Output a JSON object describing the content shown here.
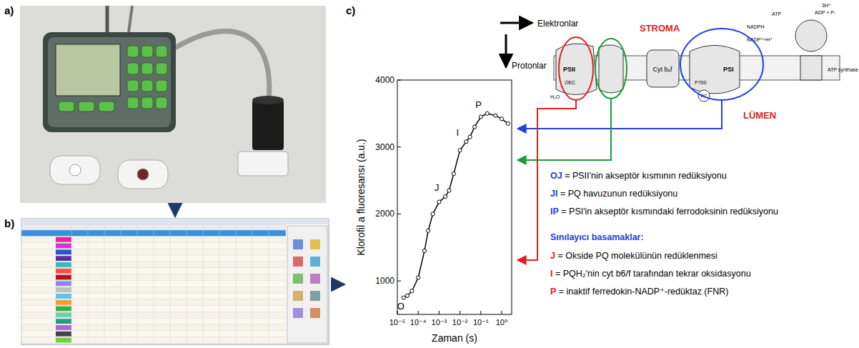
{
  "panels": {
    "a": "a)",
    "b": "b)",
    "c": "c)"
  },
  "chart_data": {
    "type": "line",
    "y_label": "Klorofil a fluoresansı (a.u.)",
    "x_label": "Zaman (s)",
    "log": "x",
    "x": [
      2e-05,
      3e-05,
      5e-05,
      0.0001,
      0.0002,
      0.0003,
      0.0005,
      0.001,
      0.002,
      0.003,
      0.005,
      0.01,
      0.02,
      0.03,
      0.05,
      0.1,
      0.2,
      0.5,
      1,
      2
    ],
    "series": [
      {
        "color": "#000000",
        "marker": "circle",
        "values": [
          750,
          780,
          850,
          1050,
          1450,
          1750,
          2000,
          2180,
          2260,
          2350,
          2600,
          2950,
          3080,
          3150,
          3300,
          3450,
          3500,
          3470,
          3420,
          3350
        ]
      }
    ],
    "xlim": [
      1e-05,
      3
    ],
    "ylim": [
      500,
      4000
    ],
    "xticks": [
      {
        "value": 1e-05,
        "label": "10⁻⁵"
      },
      {
        "value": 0.0001,
        "label": "10⁻⁴"
      },
      {
        "value": 0.001,
        "label": "10⁻³"
      },
      {
        "value": 0.01,
        "label": "10⁻²"
      },
      {
        "value": 0.1,
        "label": "10⁻¹"
      },
      {
        "value": 1,
        "label": "10⁰"
      }
    ],
    "yticks": [
      1000,
      2000,
      3000,
      4000
    ],
    "annotations": [
      {
        "text": "O",
        "x": 2e-05,
        "y": 750
      },
      {
        "text": "J",
        "x": 0.002,
        "y": 2260
      },
      {
        "text": "I",
        "x": 0.02,
        "y": 3080
      },
      {
        "text": "P",
        "x": 0.2,
        "y": 3500
      }
    ]
  },
  "diagram": {
    "electrons": "Elektronlar",
    "protons": "Protonlar",
    "stroma": "STROMA",
    "lumen": "LÜMEN",
    "psii": "PSII",
    "cytb6f": "Cyt b₆f",
    "psi": "PSI",
    "atp_synthase": "ATP synthase",
    "nadph": "NADPH",
    "nadp": "NADP⁺+H⁺",
    "atp": "ATP",
    "adp": "ADP + Pᵢ",
    "proton_atp": "3H⁺",
    "p700": "P700",
    "pc": "PC",
    "oec": "OEC",
    "h2o": "H₂O"
  },
  "definitions": {
    "phases": [
      {
        "term": "OJ",
        "text": "= PSII'nin akseptör kısmının redüksiyonu"
      },
      {
        "term": "JI",
        "text": "  = PQ havuzunun redüksiyonu"
      },
      {
        "term": "IP",
        "text": "  = PSI'in akseptör kısmındaki ferrodoksinin redüksiyonu"
      }
    ],
    "heading": "Sınılayıcı basamaklar:",
    "limits": [
      {
        "term": "J",
        "text": " = Okside PQ molekülünün redüklenmesi"
      },
      {
        "term": "I",
        "text": " = PQH₂'nin cyt b6/f tarafından tekrar oksidasyonu"
      },
      {
        "term": "P",
        "text": " = inaktif ferredokin-NADP⁺-redüktaz  (FNR)"
      }
    ]
  }
}
